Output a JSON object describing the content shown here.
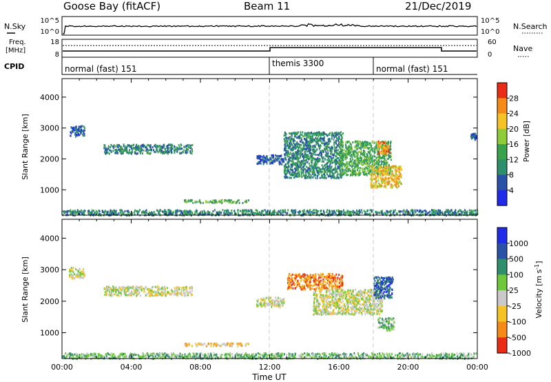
{
  "header": {
    "station": "Goose Bay (fitACF)",
    "beam": "Beam 11",
    "date": "21/Dec/2019"
  },
  "panel_labels": {
    "nsky": "N.Sky",
    "nsearch": "N.Search",
    "freq_line1": "Freq.",
    "freq_line2": "[MHz]",
    "nave": "Nave",
    "cpid": "CPID"
  },
  "cpid_segments": [
    {
      "label": "normal (fast) 151",
      "start_h": 0,
      "end_h": 12
    },
    {
      "label": "themis 3300",
      "start_h": 12,
      "end_h": 18
    },
    {
      "label": "normal (fast) 151",
      "start_h": 18,
      "end_h": 24
    }
  ],
  "left_ticks": {
    "nsky": [
      "10^5",
      "10^0"
    ],
    "freq": [
      "18",
      "8"
    ]
  },
  "right_ticks": {
    "nsearch": [
      "10^5",
      "10^0"
    ],
    "nave": [
      "60",
      "0"
    ]
  },
  "slant_axis": {
    "label": "Slant Range [km]",
    "ticks": [
      1000,
      2000,
      3000,
      4000
    ],
    "range": [
      180,
      4600
    ]
  },
  "time_axis": {
    "label": "Time UT",
    "ticks": [
      "00:00",
      "04:00",
      "08:00",
      "12:00",
      "16:00",
      "20:00",
      "00:00"
    ],
    "range_h": [
      0,
      24
    ]
  },
  "colors": {
    "power": [
      "#1f2be8",
      "#2952a6",
      "#2f8f6d",
      "#3aa24a",
      "#8fcc3a",
      "#f5c323",
      "#f58a16",
      "#ea2b16"
    ],
    "velocity": [
      "#1f2be8",
      "#2952a6",
      "#2f8f6d",
      "#6fc83b",
      "#c9c9c9",
      "#f5c323",
      "#f58a16",
      "#ea2b16"
    ],
    "dashed_markers": "#c8c8c8"
  },
  "chart_data": [
    {
      "type": "heatmap",
      "title": "Power",
      "colorbar_label": "Power [dB]",
      "colorbar_ticks": [
        "4",
        "8",
        "12",
        "16",
        "20",
        "24",
        "28"
      ],
      "xlabel": "",
      "ylabel": "Slant Range [km]",
      "ylim": [
        180,
        4600
      ],
      "xlim": [
        0,
        24
      ],
      "regions": [
        {
          "t0": 0.4,
          "t1": 1.3,
          "r0": 2750,
          "r1": 3100,
          "level": 1
        },
        {
          "t0": 2.4,
          "t1": 7.5,
          "r0": 2200,
          "r1": 2500,
          "level": 2
        },
        {
          "t0": 7.0,
          "t1": 10.8,
          "r0": 600,
          "r1": 700,
          "level": 3
        },
        {
          "t0": 0.0,
          "t1": 24.0,
          "r0": 200,
          "r1": 380,
          "level": 2
        },
        {
          "t0": 11.2,
          "t1": 12.8,
          "r0": 1850,
          "r1": 2150,
          "level": 1
        },
        {
          "t0": 12.8,
          "t1": 16.2,
          "r0": 1400,
          "r1": 2900,
          "level": 2
        },
        {
          "t0": 16.0,
          "t1": 19.0,
          "r0": 1500,
          "r1": 2600,
          "level": 3
        },
        {
          "t0": 18.2,
          "t1": 18.9,
          "r0": 2200,
          "r1": 2600,
          "level": 6
        },
        {
          "t0": 17.8,
          "t1": 19.6,
          "r0": 1100,
          "r1": 1800,
          "level": 5
        },
        {
          "t0": 23.6,
          "t1": 23.9,
          "r0": 2650,
          "r1": 2850,
          "level": 1
        }
      ]
    },
    {
      "type": "heatmap",
      "title": "Velocity",
      "colorbar_label": "Velocity [m s^-1]",
      "colorbar_ticks": [
        "1000",
        "500",
        "100",
        "25",
        "-25",
        "-100",
        "-500",
        "-1000"
      ],
      "xlabel": "Time UT",
      "ylabel": "Slant Range [km]",
      "ylim": [
        180,
        4600
      ],
      "xlim": [
        0,
        24
      ],
      "regions": [
        {
          "t0": 0.4,
          "t1": 1.3,
          "r0": 2750,
          "r1": 3100,
          "level": 4
        },
        {
          "t0": 2.4,
          "t1": 7.5,
          "r0": 2200,
          "r1": 2500,
          "level": 4
        },
        {
          "t0": 7.0,
          "t1": 10.8,
          "r0": 600,
          "r1": 700,
          "level": 5
        },
        {
          "t0": 0.0,
          "t1": 24.0,
          "r0": 200,
          "r1": 380,
          "level": 3
        },
        {
          "t0": 11.2,
          "t1": 12.8,
          "r0": 1850,
          "r1": 2150,
          "level": 4
        },
        {
          "t0": 13.0,
          "t1": 16.2,
          "r0": 2400,
          "r1": 2900,
          "level": 6
        },
        {
          "t0": 14.5,
          "t1": 18.5,
          "r0": 1600,
          "r1": 2400,
          "level": 4
        },
        {
          "t0": 18.0,
          "t1": 19.1,
          "r0": 2100,
          "r1": 2800,
          "level": 1
        },
        {
          "t0": 18.2,
          "t1": 19.2,
          "r0": 1100,
          "r1": 1500,
          "level": 3
        }
      ]
    }
  ]
}
